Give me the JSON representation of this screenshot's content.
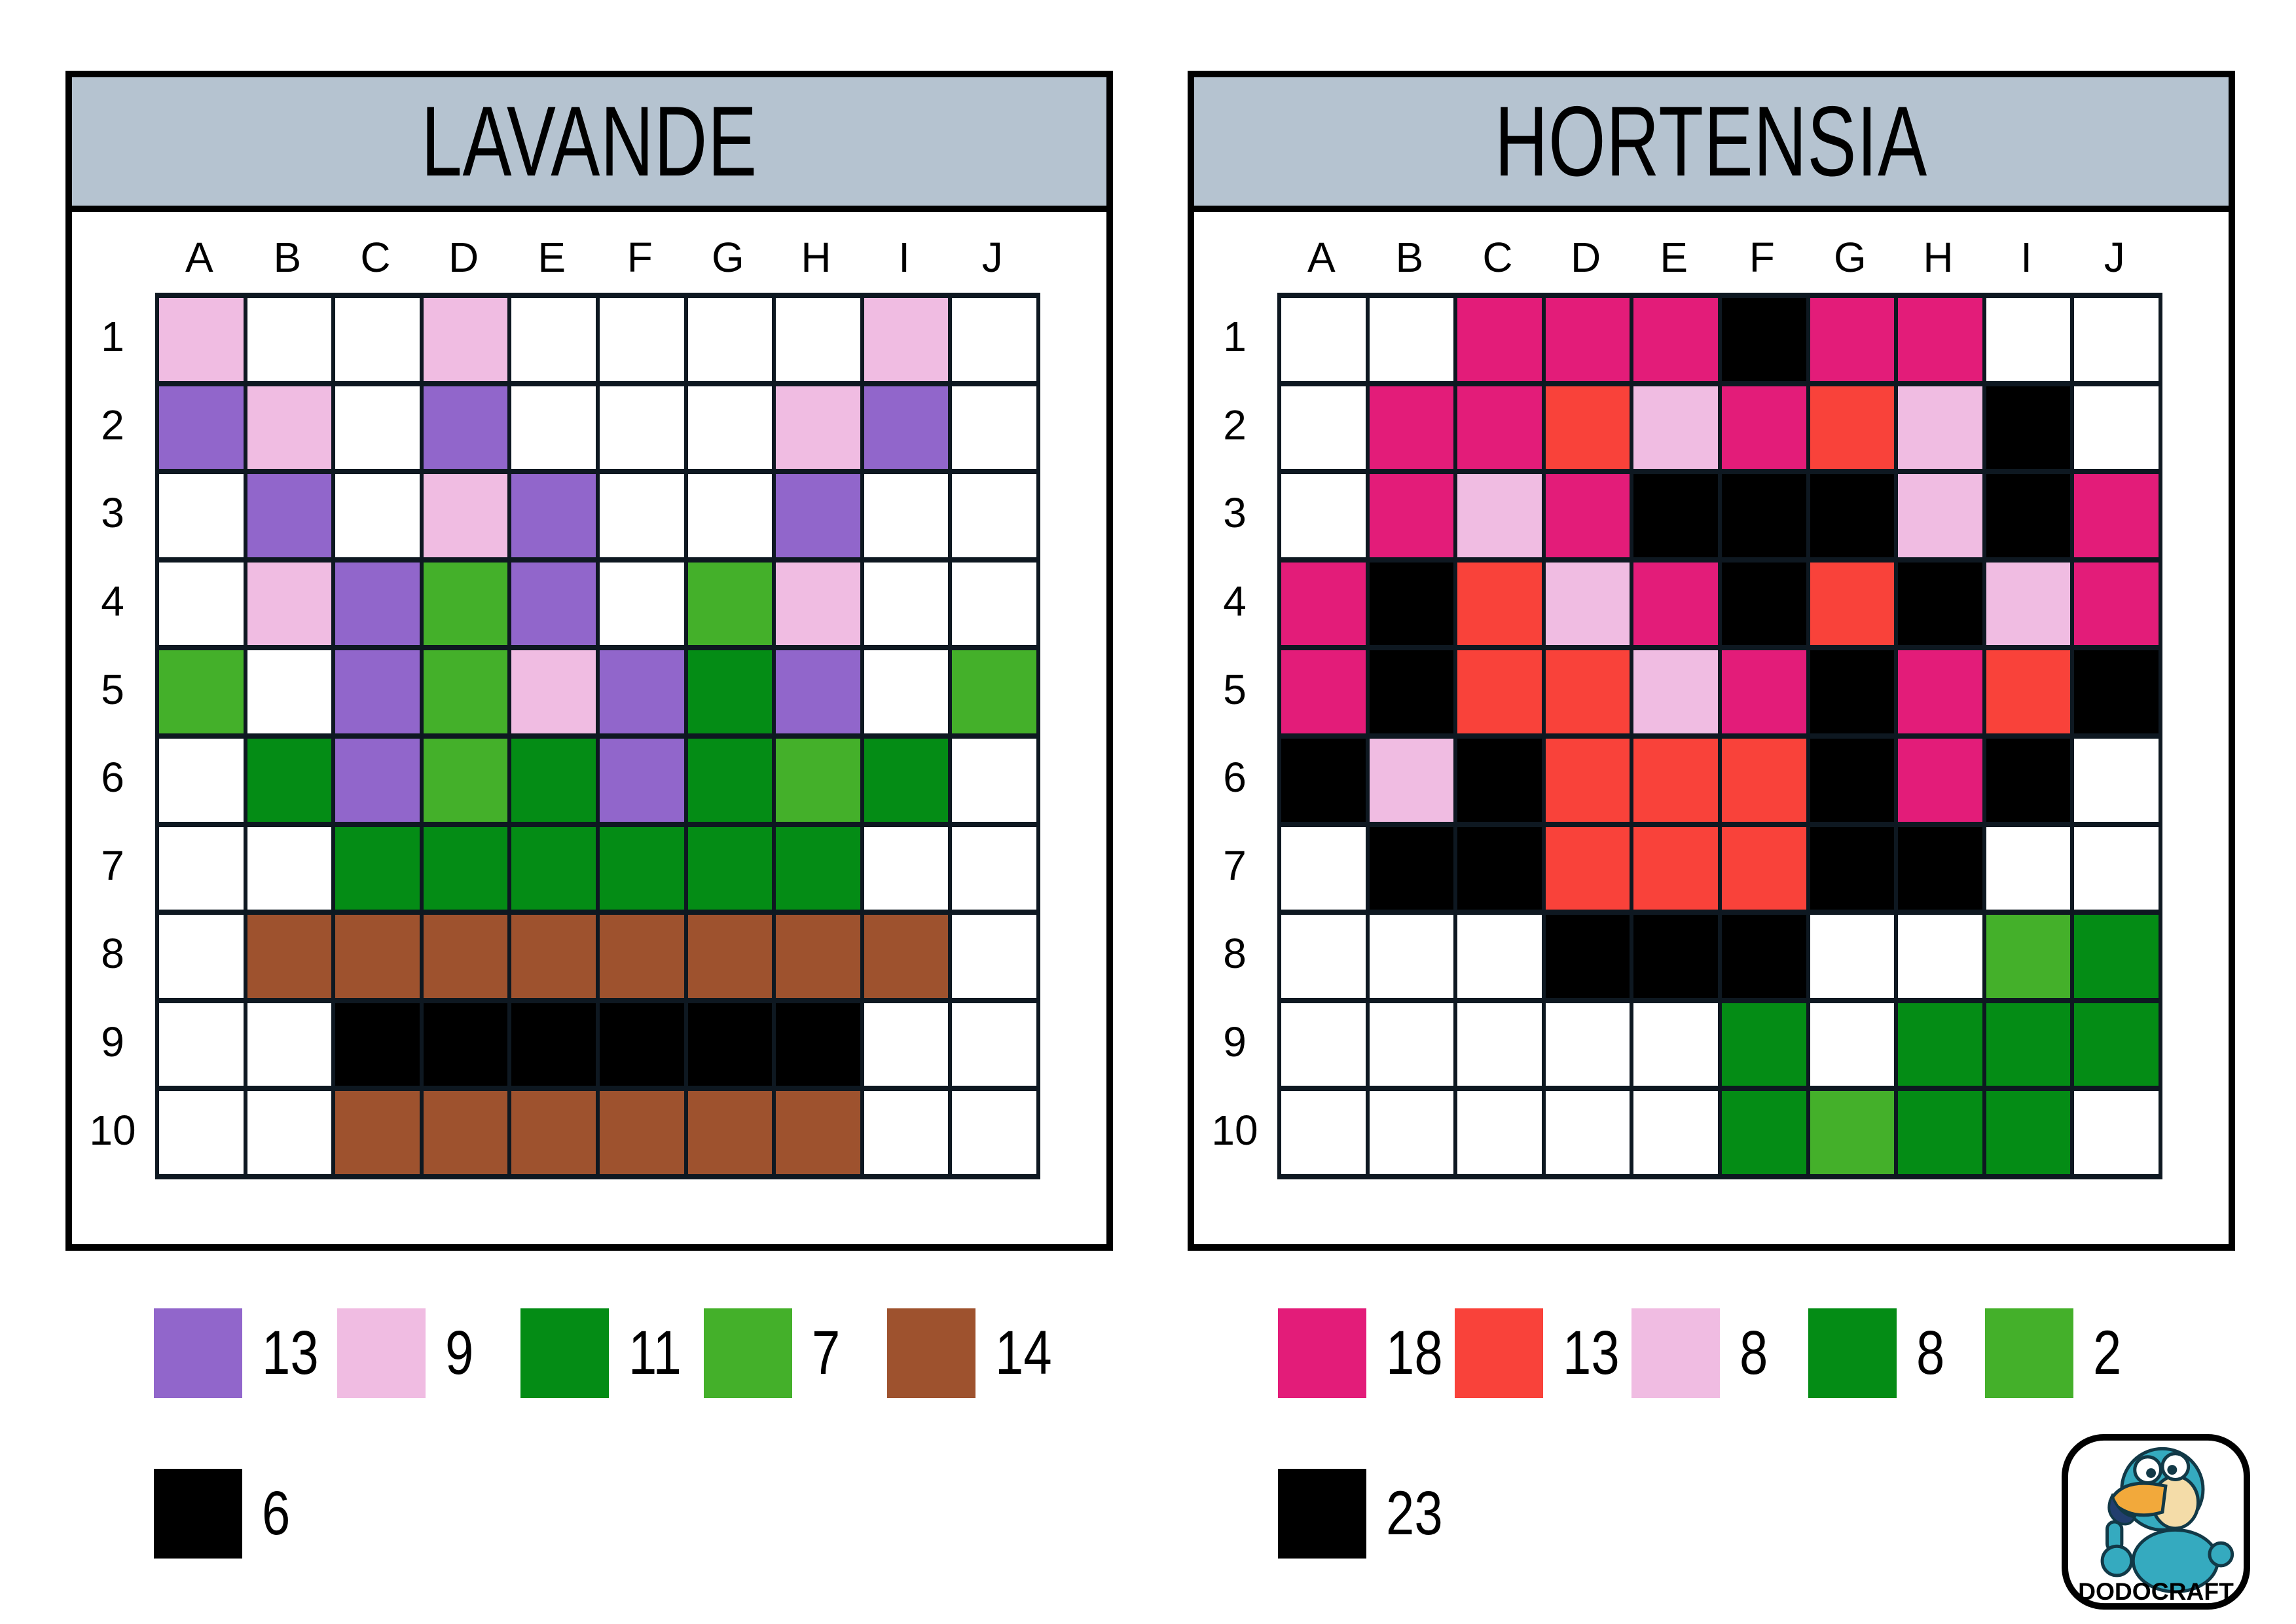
{
  "header_bg": "#B5C3D0",
  "grid_line_color": "#0E1821",
  "colors": {
    "W": "#FFFFFF",
    "P": "#9166CB",
    "K": "#F0BCE2",
    "G": "#048C15",
    "L": "#44B02A",
    "B": "#9E522E",
    "X": "#000000",
    "M": "#E31C79",
    "R": "#F9423A"
  },
  "color_names": {
    "W": "white",
    "P": "purple",
    "K": "light-pink",
    "G": "dark-green",
    "L": "light-green",
    "B": "brown",
    "X": "black",
    "M": "magenta",
    "R": "red"
  },
  "panels": [
    {
      "title": "LAVANDE",
      "columns": [
        "A",
        "B",
        "C",
        "D",
        "E",
        "F",
        "G",
        "H",
        "I",
        "J"
      ],
      "rows": [
        "1",
        "2",
        "3",
        "4",
        "5",
        "6",
        "7",
        "8",
        "9",
        "10"
      ],
      "grid": [
        "KWWKWWWWKW",
        "PKWPWWWKPW",
        "WPWKPWWPWW",
        "WKPLPWLKWW",
        "LWPLKPGPWL",
        "WGPLGPGLGW",
        "WWGGGGGGWW",
        "WBBBBBBBBW",
        "WWXXXXXXWW",
        "WWBBBBBBWW"
      ],
      "legend": [
        [
          {
            "key": "P",
            "count": "13"
          },
          {
            "key": "K",
            "count": "9"
          },
          {
            "key": "G",
            "count": "11"
          },
          {
            "key": "L",
            "count": "7"
          },
          {
            "key": "B",
            "count": "14"
          }
        ],
        [
          {
            "key": "X",
            "count": "6"
          }
        ]
      ]
    },
    {
      "title": "HORTENSIA",
      "columns": [
        "A",
        "B",
        "C",
        "D",
        "E",
        "F",
        "G",
        "H",
        "I",
        "J"
      ],
      "rows": [
        "1",
        "2",
        "3",
        "4",
        "5",
        "6",
        "7",
        "8",
        "9",
        "10"
      ],
      "grid": [
        "WWMMMXMMWW",
        "WMMRKMRKXW",
        "WMKMXXXKXM",
        "MXRKMXRXKM",
        "MXRRKMXMRX",
        "XKXRRRXMXW",
        "WXXRRRXXWW",
        "WWWXXXWWLG",
        "WWWWWGWGGG",
        "WWWWWGLGGW"
      ],
      "legend": [
        [
          {
            "key": "M",
            "count": "18"
          },
          {
            "key": "R",
            "count": "13"
          },
          {
            "key": "K",
            "count": "8"
          },
          {
            "key": "G",
            "count": "8"
          },
          {
            "key": "L",
            "count": "2"
          }
        ],
        [
          {
            "key": "X",
            "count": "23"
          }
        ]
      ]
    }
  ],
  "logo": {
    "text": "DODOCRAFT"
  }
}
